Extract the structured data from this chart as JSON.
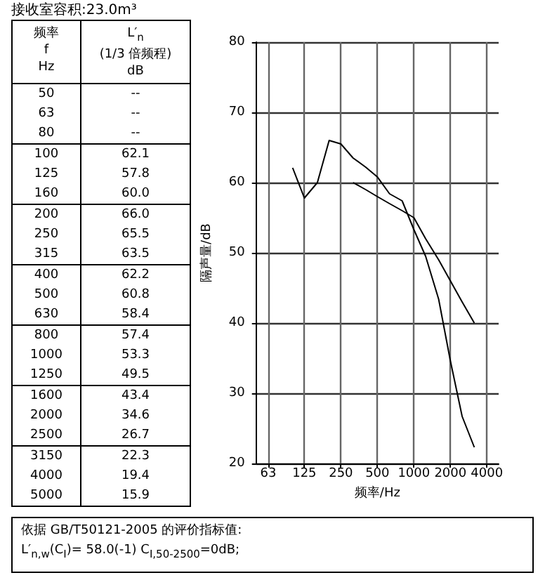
{
  "chart_data": [
    {
      "type": "other",
      "title": "接收室容积:23.0m³",
      "xlabel": "频率\nf\nHz",
      "ylabel": "L′$_{n}$\n(1/3 倍频程)\ndB",
      "categories": [
        "50",
        "63",
        "80",
        "100",
        "125",
        "160",
        "200",
        "250",
        "315",
        "400",
        "500",
        "630",
        "800",
        "1000",
        "1250",
        "1600",
        "2000",
        "2500",
        "3150",
        "4000",
        "5000"
      ],
      "value_labels": [
        "--",
        "--",
        "--",
        "62.1",
        "57.8",
        "60.0",
        "66.0",
        "65.5",
        "63.5",
        "62.2",
        "60.8",
        "58.4",
        "57.4",
        "53.3",
        "49.5",
        "43.4",
        "34.6",
        "26.7",
        "22.3",
        "19.4",
        "15.9"
      ],
      "annotations": [
        "依据 GB/T50121-2005 的评价指标值:",
        "L′$_{n,w}$(C$_{I}$)= 58.0(-1) C$_{I,50-2500}$=0dB;"
      ]
    },
    {
      "type": "line",
      "xlabel": "频率/Hz",
      "ylabel": "隔声量/dB",
      "log": "x",
      "xlim": [
        50,
        5000
      ],
      "xticks": [
        63,
        125,
        250,
        500,
        1000,
        2000,
        4000
      ],
      "ylim": [
        20,
        80
      ],
      "yticks": [
        20,
        30,
        40,
        50,
        60,
        70,
        80
      ],
      "grid": true,
      "marker": "none",
      "line_style": "solid",
      "series": [
        {
          "color": "#000000",
          "x": [
            100,
            125,
            160,
            200,
            250,
            315,
            400,
            500,
            630,
            800,
            1000,
            1250,
            1600,
            2000,
            2500,
            3150
          ],
          "values": [
            62.1,
            57.8,
            60.0,
            66.0,
            65.5,
            63.5,
            62.2,
            60.8,
            58.4,
            57.4,
            53.3,
            49.5,
            43.4,
            34.6,
            26.7,
            22.3
          ]
        },
        {
          "color": "#000000",
          "x": [
            315,
            400,
            500,
            630,
            800,
            1000,
            1250,
            1600,
            2000,
            2500,
            3150
          ],
          "values": [
            60,
            59,
            58,
            57,
            56,
            55,
            52,
            49,
            46,
            43,
            40
          ]
        }
      ]
    }
  ]
}
